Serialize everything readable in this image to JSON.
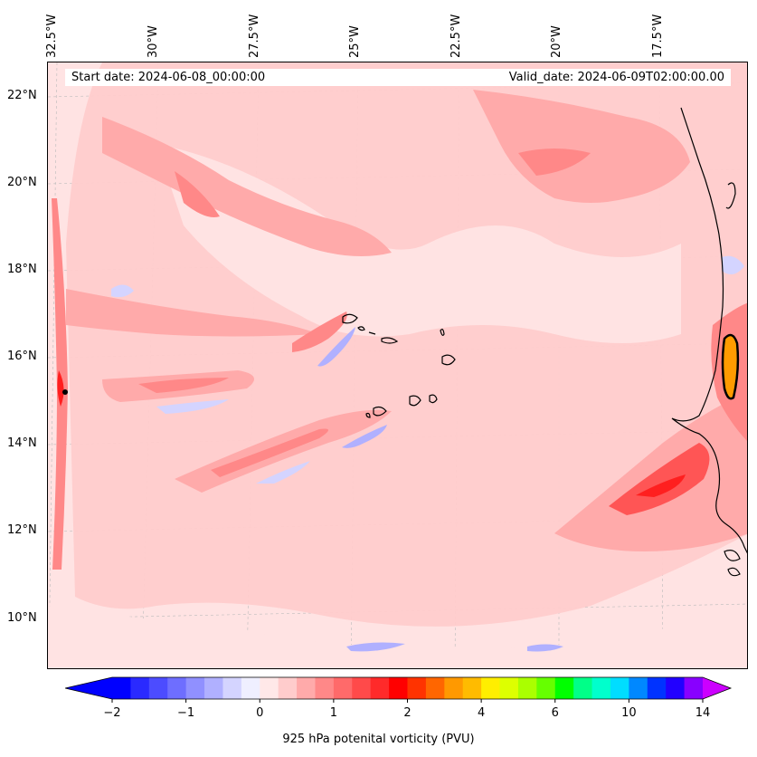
{
  "map": {
    "start_date": "Start date: 2024-06-08_00:00:00",
    "valid_date": "Valid_date: 2024-06-09T02:00:00.00",
    "lon_labels": [
      "32.5°W",
      "30°W",
      "27.5°W",
      "25°W",
      "22.5°W",
      "20°W",
      "17.5°W"
    ],
    "lat_labels": [
      "22°N",
      "20°N",
      "18°N",
      "16°N",
      "14°N",
      "12°N",
      "10°N"
    ],
    "colors": {
      "background": "#ffe3e3",
      "light_pink": "#ffcccc",
      "pink": "#ffaaaa",
      "salmon": "#ff8888",
      "red": "#ff5555",
      "deep_red": "#ff1f1f",
      "light_blue": "#ececff",
      "blue": "#b0b0ff",
      "orange": "#ff9b00",
      "coast": "#000000"
    }
  },
  "colorbar": {
    "label": "925 hPa potenital vorticity (PVU)",
    "ticks": [
      "−2",
      "−1",
      "0",
      "1",
      "2",
      "4",
      "6",
      "10",
      "14"
    ],
    "colors": [
      "#0000ff",
      "#2a2aff",
      "#4c4cff",
      "#6e6eff",
      "#9090ff",
      "#b0b0ff",
      "#d4d4ff",
      "#efefff",
      "#ffe8e8",
      "#ffcccc",
      "#ffaaaa",
      "#ff8888",
      "#ff6a6a",
      "#ff4a4a",
      "#ff2a2a",
      "#ff0000",
      "#ff3300",
      "#ff6600",
      "#ff9900",
      "#ffbb00",
      "#ffee00",
      "#ddff00",
      "#aaff00",
      "#66ff00",
      "#00ff00",
      "#00ff88",
      "#00ffcc",
      "#00ddff",
      "#0088ff",
      "#0033ff",
      "#2200ff",
      "#8800ff"
    ],
    "under_color": "#0000ff",
    "over_color": "#cc00ff"
  }
}
